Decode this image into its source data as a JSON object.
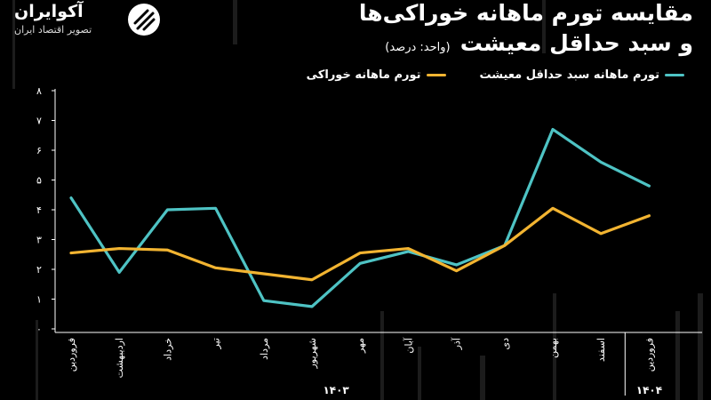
{
  "header": {
    "title_line1": "مقایسه تورم ماهانه خوراکی‌ها",
    "title_line2": "و سبد حداقل معیشت",
    "unit": "(واحد: درصد)"
  },
  "logo": {
    "name": "آکوایران",
    "tagline": "تصویر اقتصاد ایران"
  },
  "colors": {
    "background": "#000000",
    "subsistence": "#4ec3c4",
    "food": "#f2b431"
  },
  "chart_data": {
    "type": "line",
    "categories": [
      "فروردین",
      "اردیبهشت",
      "خرداد",
      "تیر",
      "مرداد",
      "شهریور",
      "مهر",
      "آبان",
      "آذر",
      "دی",
      "بهمن",
      "اسفند",
      "فروردین"
    ],
    "year_labels": [
      {
        "text": "۱۴۰۳",
        "start": 0,
        "end": 11
      },
      {
        "text": "۱۴۰۴",
        "start": 12,
        "end": 12
      }
    ],
    "series": [
      {
        "name": "تورم ماهانه سبد حداقل معیشت",
        "color": "#4ec3c4",
        "values": [
          4.4,
          1.9,
          4.0,
          4.05,
          0.95,
          0.75,
          2.2,
          2.6,
          2.15,
          2.8,
          6.7,
          5.6,
          4.8
        ]
      },
      {
        "name": "تورم ماهانه خوراکی",
        "color": "#f2b431",
        "values": [
          2.55,
          2.7,
          2.65,
          2.05,
          1.85,
          1.65,
          2.55,
          2.7,
          1.95,
          2.8,
          4.05,
          3.2,
          3.8
        ]
      }
    ],
    "y_ticks": [
      "۰",
      "۱",
      "۲",
      "۳",
      "۴",
      "۵",
      "۶",
      "۷",
      "۸"
    ],
    "ylim": [
      0,
      8
    ],
    "grid": false,
    "legend": "top-right"
  }
}
